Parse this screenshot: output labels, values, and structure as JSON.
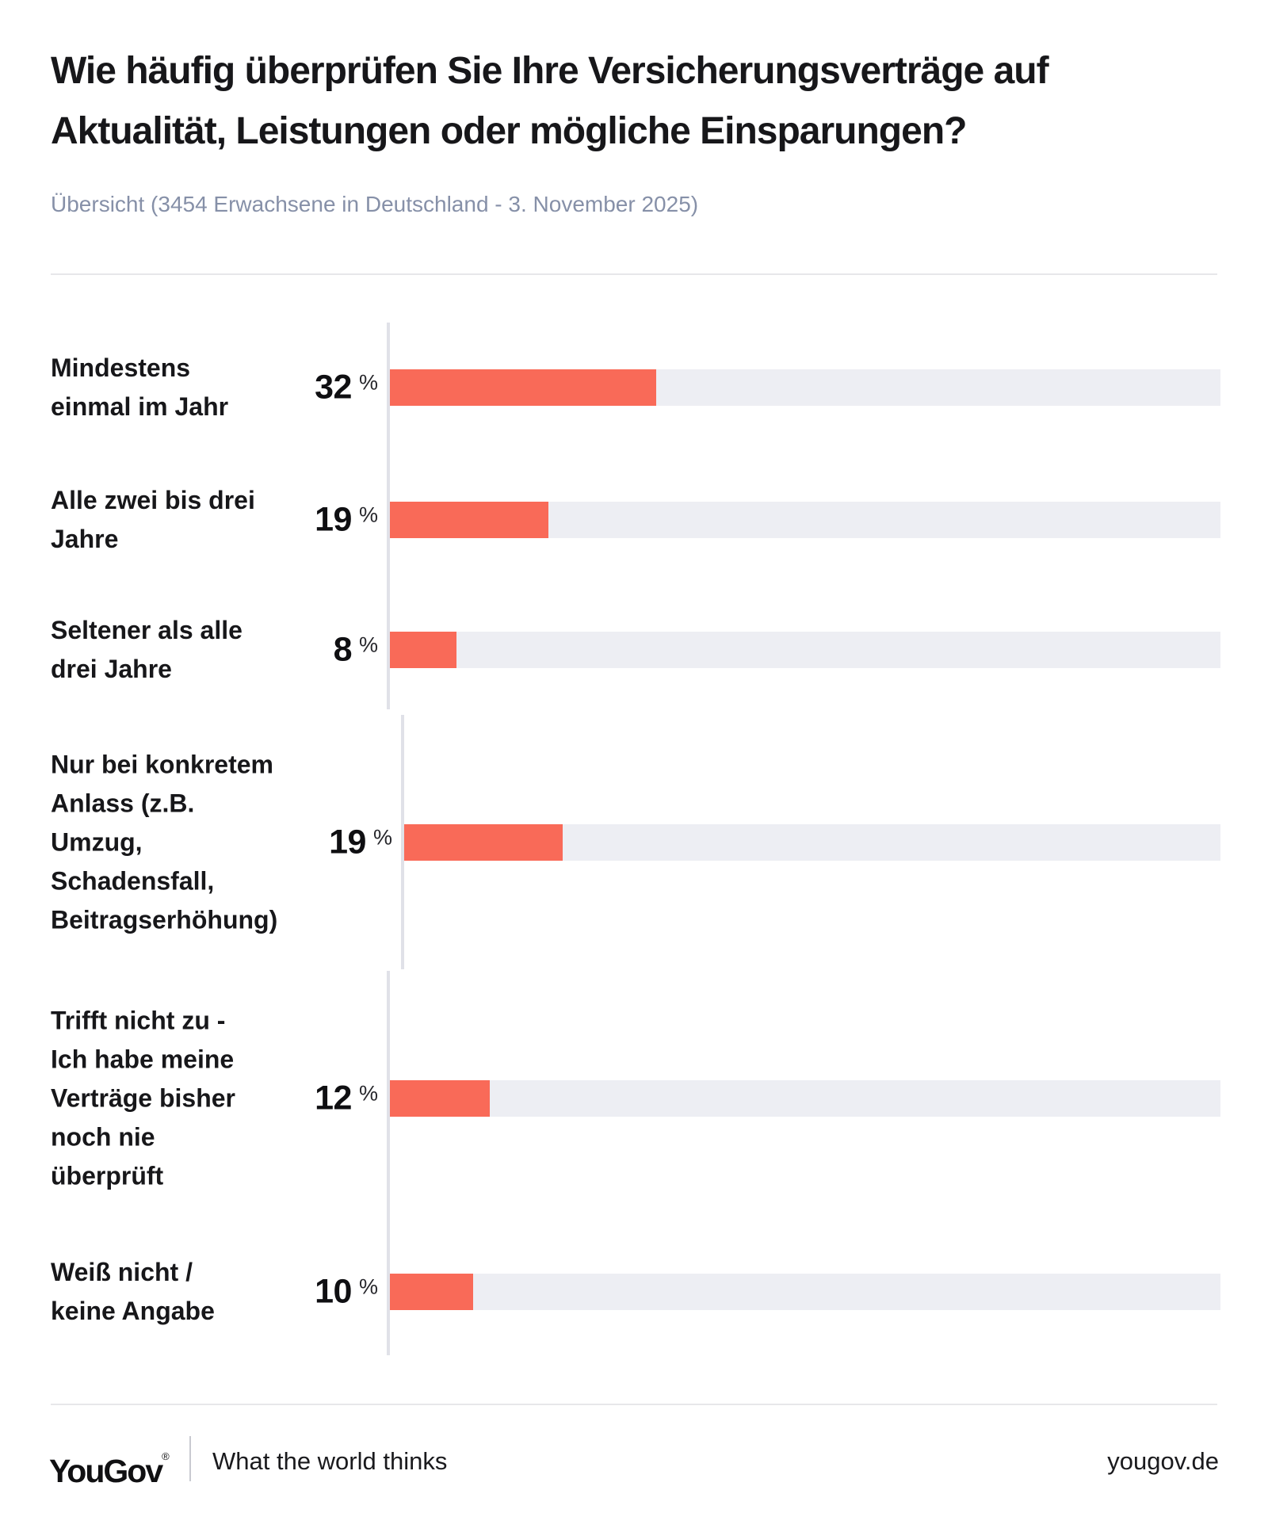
{
  "header": {
    "title_line1": "Wie häufig überprüfen Sie Ihre Versicherungsverträge auf",
    "title_line2": "Aktualität, Leistungen oder mögliche Einsparungen?",
    "subtitle": "Übersicht (3454 Erwachsene in Deutschland - 3. November 2025)"
  },
  "chart_data": {
    "type": "bar",
    "orientation": "horizontal",
    "unit": "%",
    "xlim": [
      0,
      100
    ],
    "grid": false,
    "bar_color": "#F96A58",
    "track_color": "#EDEEF3",
    "axis_color": "#E0E1E8",
    "categories": [
      "Mindestens einmal im Jahr",
      "Alle zwei bis drei Jahre",
      "Seltener als alle drei Jahre",
      "Nur bei konkretem Anlass (z.B. Umzug, Schadensfall, Beitragserhöhung)",
      "Trifft nicht zu - Ich habe meine Verträge bisher noch nie überprüft",
      "Weiß nicht / keine Angabe"
    ],
    "label_lines": [
      [
        "Mindestens",
        "einmal im Jahr"
      ],
      [
        "Alle zwei bis drei",
        "Jahre"
      ],
      [
        "Seltener als alle",
        "drei Jahre"
      ],
      [
        "Nur bei konkretem",
        "Anlass (z.B.",
        "Umzug,",
        "Schadensfall,",
        "Beitragserhöhung)"
      ],
      [
        "Trifft nicht zu -",
        "Ich habe meine",
        "Verträge bisher",
        "noch nie",
        "überprüft"
      ],
      [
        "Weiß nicht /",
        "keine Angabe"
      ]
    ],
    "values": [
      32,
      19,
      8,
      19,
      12,
      10
    ],
    "value_labels": [
      "32",
      "19",
      "8",
      "19",
      "12",
      "10"
    ]
  },
  "footer": {
    "logo": "YouGov",
    "registered_mark": "®",
    "tagline": "What the world thinks",
    "website": "yougov.de"
  }
}
